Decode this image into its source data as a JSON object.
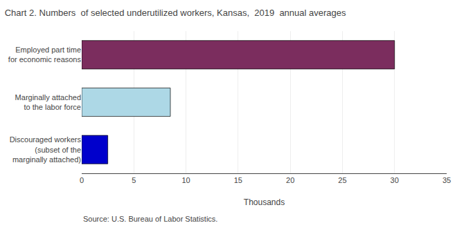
{
  "chart_data": {
    "type": "bar",
    "orientation": "horizontal",
    "title": "Chart 2. Numbers  of selected underutilized workers, Kansas,  2019  annual averages",
    "categories": [
      "Discouraged workers\n(subset of the\nmarginally attached)",
      "Marginally attached\nto the labor force",
      "Employed part time\nfor economic reasons"
    ],
    "values": [
      2.5,
      8.5,
      30.0
    ],
    "colors": [
      "#0000CC",
      "#ADD8E6",
      "#7B2D5E"
    ],
    "xlim": [
      0,
      35
    ],
    "xticks": [
      0,
      5,
      10,
      15,
      20,
      25,
      30,
      35
    ],
    "xlabel": "Thousands",
    "annotations": [
      "Source: U.S. Bureau of Labor Statistics."
    ],
    "grid": true
  }
}
